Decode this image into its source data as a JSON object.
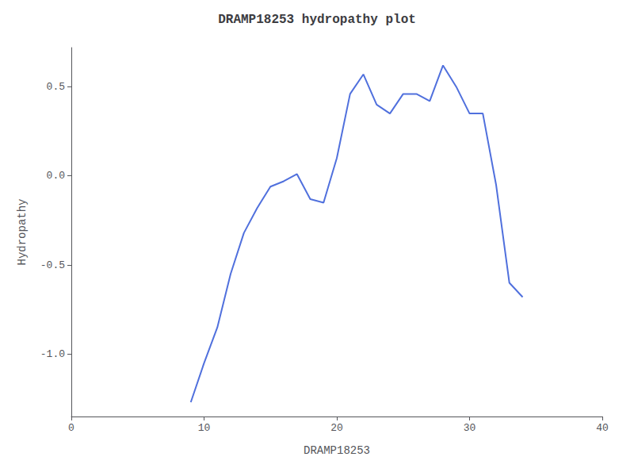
{
  "chart_data": {
    "type": "line",
    "title": "DRAMP18253 hydropathy plot",
    "xlabel": "DRAMP18253",
    "ylabel": "Hydropathy",
    "x": [
      9,
      10,
      11,
      12,
      13,
      14,
      15,
      16,
      17,
      18,
      19,
      20,
      21,
      22,
      23,
      24,
      25,
      26,
      27,
      28,
      29,
      30,
      31,
      32,
      33,
      34
    ],
    "values": [
      -1.27,
      -1.05,
      -0.85,
      -0.55,
      -0.32,
      -0.18,
      -0.06,
      -0.03,
      0.01,
      -0.13,
      -0.15,
      0.1,
      0.46,
      0.57,
      0.4,
      0.35,
      0.46,
      0.46,
      0.42,
      0.62,
      0.5,
      0.35,
      0.35,
      -0.05,
      -0.6,
      -0.68
    ],
    "xlim": [
      0,
      40
    ],
    "ylim": [
      -1.35,
      0.72
    ],
    "xticks": [
      0,
      10,
      20,
      30,
      40
    ],
    "yticks": [
      {
        "value": -1.0,
        "label": "-1.0"
      },
      -0.5,
      {
        "value": 0.0,
        "label": "0.0"
      },
      0.5
    ],
    "grid": false
  }
}
